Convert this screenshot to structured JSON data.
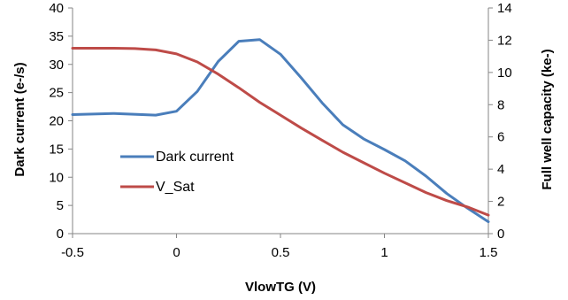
{
  "chart_data": {
    "type": "line",
    "xlabel": "VlowTG (V)",
    "ylabel_left": "Dark current (e-/s)",
    "ylabel_right": "Full well capacity (ke-)",
    "xlim": [
      -0.5,
      1.5
    ],
    "ylim_left": [
      0,
      40
    ],
    "ylim_right": [
      0,
      14
    ],
    "x_ticks": [
      "-0.5",
      "0",
      "0.5",
      "1",
      "1.5"
    ],
    "y_left_ticks": [
      "0",
      "5",
      "10",
      "15",
      "20",
      "25",
      "30",
      "35",
      "40"
    ],
    "y_right_ticks": [
      "0",
      "2",
      "4",
      "6",
      "8",
      "10",
      "12",
      "14"
    ],
    "grid": false,
    "legend_position": "center-left",
    "series": [
      {
        "name": "Dark current",
        "axis": "left",
        "color": "#4A7EBB",
        "x": [
          -0.5,
          -0.3,
          -0.1,
          0,
          0.1,
          0.2,
          0.3,
          0.4,
          0.5,
          0.6,
          0.7,
          0.8,
          0.9,
          1.0,
          1.1,
          1.2,
          1.3,
          1.4,
          1.5
        ],
        "y": [
          21.1,
          21.3,
          21.0,
          21.7,
          25.2,
          30.5,
          34.1,
          34.4,
          31.8,
          27.6,
          23.2,
          19.3,
          16.8,
          14.9,
          12.9,
          10.2,
          7.1,
          4.5,
          2.1
        ]
      },
      {
        "name": "V_Sat",
        "axis": "right",
        "color": "#BE4B48",
        "x": [
          -0.5,
          -0.3,
          -0.2,
          -0.1,
          0,
          0.1,
          0.2,
          0.3,
          0.4,
          0.5,
          0.6,
          0.7,
          0.8,
          0.9,
          1.0,
          1.1,
          1.2,
          1.3,
          1.4,
          1.5
        ],
        "y": [
          11.5,
          11.5,
          11.48,
          11.4,
          11.15,
          10.65,
          9.9,
          9.05,
          8.15,
          7.35,
          6.55,
          5.8,
          5.05,
          4.4,
          3.75,
          3.15,
          2.55,
          2.05,
          1.65,
          1.15
        ]
      }
    ]
  }
}
